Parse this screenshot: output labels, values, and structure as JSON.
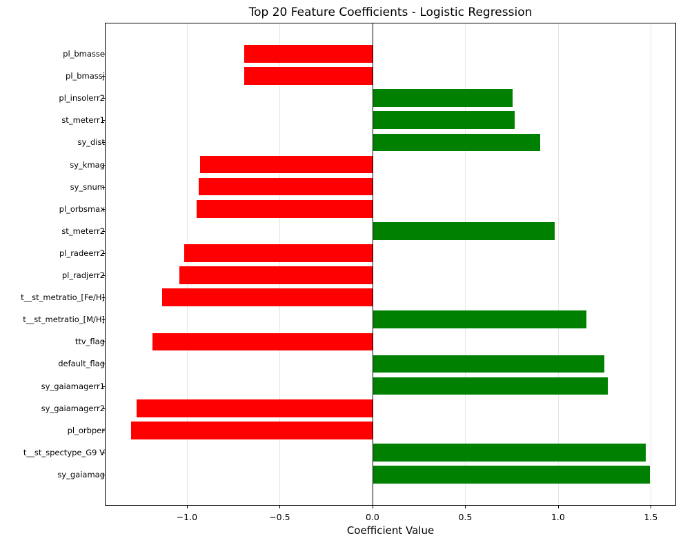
{
  "chart_data": {
    "type": "bar",
    "orientation": "horizontal",
    "title": "Top 20 Feature Coefficients - Logistic Regression",
    "xlabel": "Coefficient Value",
    "ylabel": "",
    "xlim": [
      -1.442,
      1.636
    ],
    "ylim": [
      -1.4,
      20.4
    ],
    "grid": {
      "x": true,
      "y": false
    },
    "xticks": [
      -1.0,
      -0.5,
      0.0,
      0.5,
      1.0,
      1.5
    ],
    "xtick_labels": [
      "−1.0",
      "−0.5",
      "0.0",
      "0.5",
      "1.0",
      "1.5"
    ],
    "positive_color": "#008000",
    "negative_color": "#ff0000",
    "categories": [
      "sy_gaiamag",
      "t__st_spectype_G9 V",
      "pl_orbper",
      "sy_gaiamagerr2",
      "sy_gaiamagerr1",
      "default_flag",
      "ttv_flag",
      "t__st_metratio_[M/H]",
      "t__st_metratio_[Fe/H]",
      "pl_radjerr2",
      "pl_radeerr2",
      "st_meterr2",
      "pl_orbsmax",
      "sy_snum",
      "sy_kmag",
      "sy_dist",
      "st_meterr1",
      "pl_insolerr2",
      "pl_bmassj",
      "pl_bmasse"
    ],
    "values": [
      1.494,
      1.472,
      -1.301,
      -1.271,
      1.268,
      1.249,
      -1.186,
      1.152,
      -1.134,
      -1.041,
      -1.015,
      0.98,
      -0.948,
      -0.937,
      -0.929,
      0.903,
      0.766,
      0.755,
      -0.691,
      -0.691
    ]
  }
}
